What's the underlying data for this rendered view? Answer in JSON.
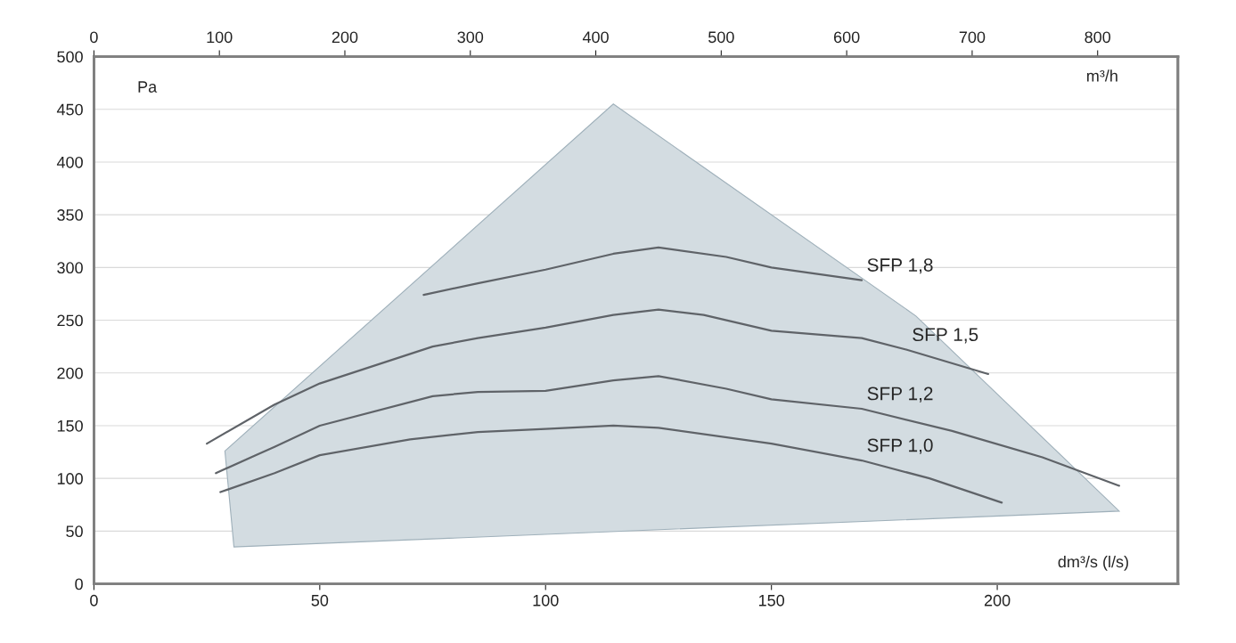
{
  "chart_data": {
    "type": "line",
    "xlabel": "dm³/s (l/s)",
    "ylabel": "Pa",
    "x2label": "m³/h",
    "xlim": [
      0,
      240
    ],
    "xticks": [
      0,
      50,
      100,
      150,
      200
    ],
    "ylim": [
      0,
      500
    ],
    "yticks": [
      0,
      50,
      100,
      150,
      200,
      250,
      300,
      350,
      400,
      450,
      500
    ],
    "x2lim": [
      0,
      864
    ],
    "x2ticks": [
      0,
      100,
      200,
      300,
      400,
      500,
      600,
      700,
      800
    ],
    "grid": "y",
    "marker": "none",
    "line_style": "solid",
    "series": [
      {
        "type": "area",
        "color": "#d3dce1",
        "x": [
          29,
          115,
          182,
          227,
          31
        ],
        "values": [
          126,
          455,
          254,
          69,
          35
        ]
      },
      {
        "name": "SFP 1,8",
        "color": "#5f6368",
        "x": [
          73,
          85,
          100,
          115,
          125,
          140,
          150,
          170
        ],
        "values": [
          274,
          285,
          298,
          313,
          319,
          310,
          300,
          288
        ]
      },
      {
        "name": "SFP 1,5",
        "color": "#5f6368",
        "x": [
          25,
          40,
          50,
          75,
          85,
          100,
          115,
          125,
          135,
          150,
          170,
          180,
          198
        ],
        "values": [
          133,
          170,
          190,
          225,
          233,
          243,
          255,
          260,
          255,
          240,
          233,
          222,
          199
        ]
      },
      {
        "name": "SFP 1,2",
        "color": "#5f6368",
        "x": [
          27,
          40,
          50,
          75,
          85,
          100,
          115,
          125,
          140,
          150,
          170,
          190,
          210,
          227
        ],
        "values": [
          105,
          130,
          150,
          178,
          182,
          183,
          193,
          197,
          185,
          175,
          166,
          145,
          120,
          93
        ]
      },
      {
        "name": "SFP 1,0",
        "color": "#5f6368",
        "x": [
          28,
          40,
          50,
          70,
          85,
          100,
          115,
          125,
          150,
          170,
          185,
          201
        ],
        "values": [
          87,
          105,
          122,
          137,
          144,
          147,
          150,
          148,
          133,
          117,
          100,
          77
        ]
      }
    ]
  }
}
